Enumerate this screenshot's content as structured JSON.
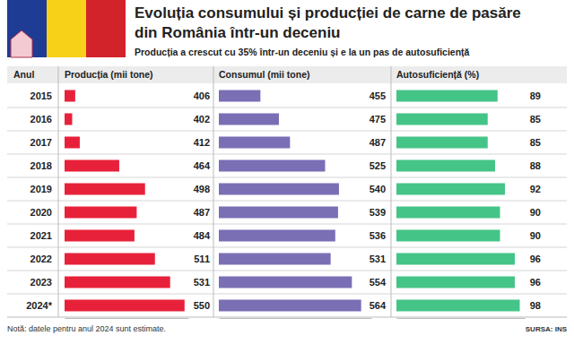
{
  "header": {
    "title": [
      "Evoluția consumului și producției de carne de pasăre",
      "din România într-un deceniu"
    ],
    "subtitle": "Producția a crescut cu 35% într-un deceniu și e la un pas de autosuficiență"
  },
  "footer": {
    "note": "Notă: datele pentru anul 2024 sunt estimate.",
    "source": "SURSA: INS"
  },
  "chart_data": [
    {
      "type": "bar",
      "orientation": "horizontal",
      "title": "Producția (mii tone)",
      "ylabel": "Anul",
      "categories": [
        "2015",
        "2016",
        "2017",
        "2018",
        "2019",
        "2020",
        "2021",
        "2022",
        "2023",
        "2024*"
      ],
      "values": [
        406,
        402,
        412,
        464,
        498,
        487,
        484,
        511,
        531,
        550
      ],
      "color": "#e8213a",
      "xlim": [
        392,
        555
      ],
      "data_labels": true,
      "tick_labels": "y"
    },
    {
      "type": "bar",
      "orientation": "horizontal",
      "title": "Consumul (mii tone)",
      "categories": [
        "2015",
        "2016",
        "2017",
        "2018",
        "2019",
        "2020",
        "2021",
        "2022",
        "2023",
        "2024*"
      ],
      "values": [
        455,
        475,
        487,
        525,
        540,
        539,
        536,
        531,
        554,
        564
      ],
      "color": "#7a6fb5",
      "xlim": [
        410,
        575
      ],
      "data_labels": true,
      "tick_labels": false
    },
    {
      "type": "bar",
      "orientation": "horizontal",
      "title": "Autosuficiență (%)",
      "categories": [
        "2015",
        "2016",
        "2017",
        "2018",
        "2019",
        "2020",
        "2021",
        "2022",
        "2023",
        "2024*"
      ],
      "values": [
        89,
        85,
        85,
        88,
        92,
        90,
        90,
        96,
        96,
        98
      ],
      "color": "#45c487",
      "xlim": [
        48,
        100
      ],
      "data_labels": true,
      "tick_labels": false
    }
  ]
}
